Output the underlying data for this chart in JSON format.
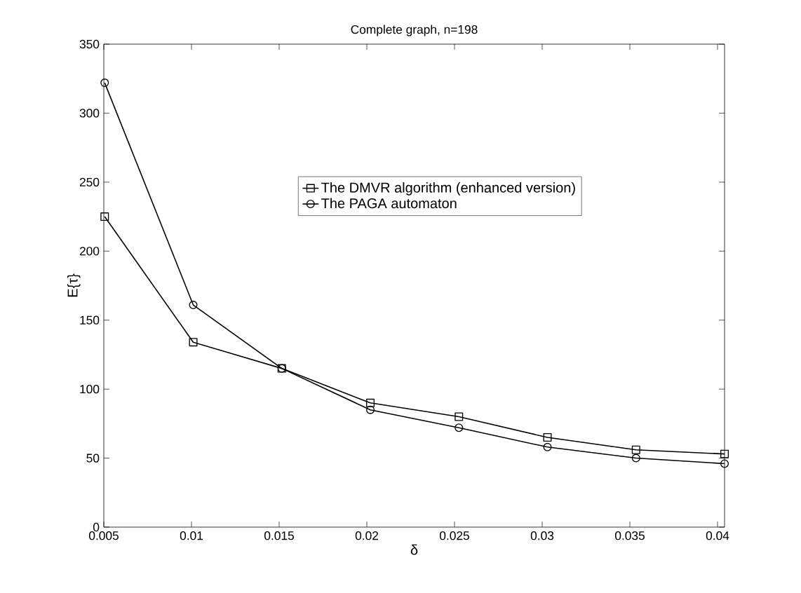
{
  "chart_data": {
    "type": "line",
    "title": "Complete graph, n=198",
    "xlabel": "δ",
    "ylabel": "E{τ}",
    "x": [
      0.00505,
      0.0101,
      0.01515,
      0.0202,
      0.02525,
      0.0303,
      0.03535,
      0.0404
    ],
    "series": [
      {
        "name": "The DMVR algorithm (enhanced version)",
        "color": "#000000",
        "marker": "square",
        "values": [
          225,
          134,
          115,
          90,
          80,
          65,
          56,
          53
        ]
      },
      {
        "name": "The PAGA automaton",
        "color": "#000000",
        "marker": "circle",
        "values": [
          322,
          161,
          115,
          85,
          72,
          58,
          50,
          46
        ]
      }
    ],
    "xlim": [
      0.005,
      0.0404
    ],
    "ylim": [
      0,
      350
    ],
    "xticks": [
      0.005,
      0.01,
      0.015,
      0.02,
      0.025,
      0.03,
      0.035,
      0.04
    ],
    "yticks": [
      0,
      50,
      100,
      150,
      200,
      250,
      300,
      350
    ],
    "grid": false,
    "legend": "right",
    "line_style": "solid"
  }
}
